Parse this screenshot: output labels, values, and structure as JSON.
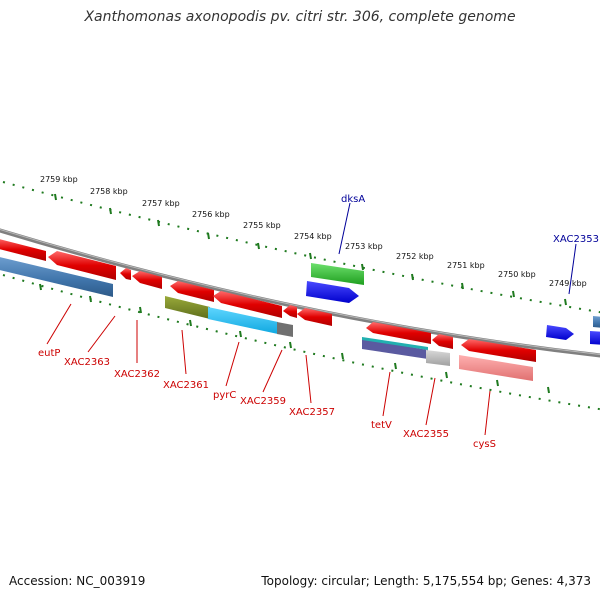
{
  "title": "Xanthomonas axonopodis pv. citri str. 306, complete genome",
  "footer": {
    "accession": "Accession: NC_003919",
    "topology": "Topology: circular; Length: 5,175,554 bp; Genes: 4,373"
  },
  "colors": {
    "strand_line": "#8a8a8a",
    "tick_dots": "#1f7a1f",
    "label_red": "#cc0000",
    "label_blue": "#000099"
  },
  "kbp_ticks": [
    "2759 kbp",
    "2758 kbp",
    "2757 kbp",
    "2756 kbp",
    "2755 kbp",
    "2754 kbp",
    "2753 kbp",
    "2752 kbp",
    "2751 kbp",
    "2750 kbp",
    "2749 kbp"
  ],
  "gene_labels": [
    {
      "name": "eutP",
      "color": "red"
    },
    {
      "name": "XAC2363",
      "color": "red"
    },
    {
      "name": "XAC2362",
      "color": "red"
    },
    {
      "name": "XAC2361",
      "color": "red"
    },
    {
      "name": "pyrC",
      "color": "red"
    },
    {
      "name": "XAC2359",
      "color": "red"
    },
    {
      "name": "XAC2357",
      "color": "red"
    },
    {
      "name": "tetV",
      "color": "red"
    },
    {
      "name": "XAC2355",
      "color": "red"
    },
    {
      "name": "cysS",
      "color": "red"
    },
    {
      "name": "dksA",
      "color": "blue"
    },
    {
      "name": "XAC2353",
      "color": "blue"
    }
  ]
}
